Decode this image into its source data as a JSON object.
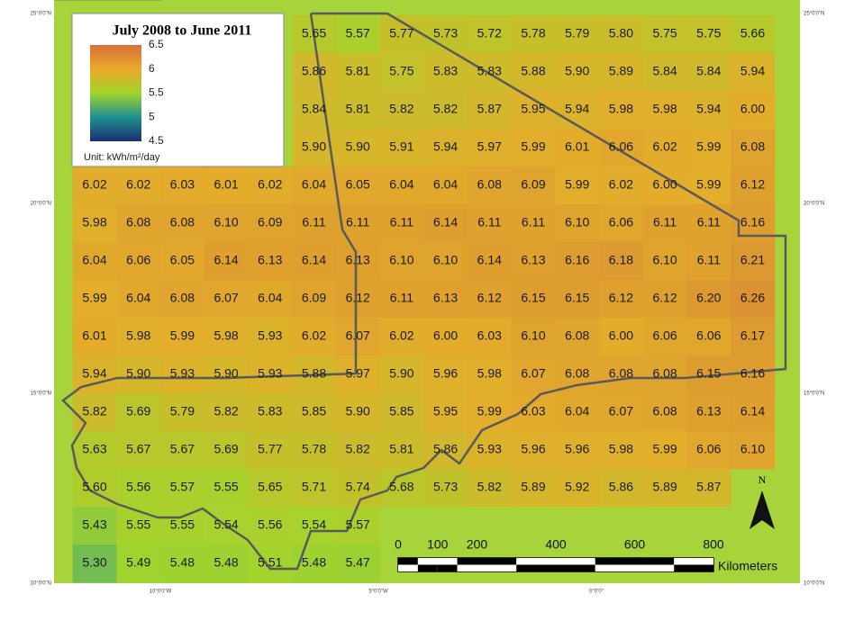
{
  "grid": {
    "rows": [
      [
        null,
        null,
        null,
        null,
        null,
        "5.65",
        "5.57",
        "5.77",
        "5.73",
        "5.72",
        "5.78",
        "5.79",
        "5.80",
        "5.75",
        "5.75",
        "5.66"
      ],
      [
        null,
        null,
        null,
        null,
        null,
        "5.86",
        "5.81",
        "5.75",
        "5.83",
        "5.83",
        "5.88",
        "5.90",
        "5.89",
        "5.84",
        "5.84",
        "5.94"
      ],
      [
        null,
        null,
        null,
        null,
        null,
        "5.84",
        "5.81",
        "5.82",
        "5.82",
        "5.87",
        "5.95",
        "5.94",
        "5.98",
        "5.98",
        "5.94",
        "6.00"
      ],
      [
        null,
        null,
        null,
        null,
        null,
        "5.90",
        "5.90",
        "5.91",
        "5.94",
        "5.97",
        "5.99",
        "6.01",
        "6.06",
        "6.02",
        "5.99",
        "6.08"
      ],
      [
        "6.02",
        "6.02",
        "6.03",
        "6.01",
        "6.02",
        "6.04",
        "6.05",
        "6.04",
        "6.04",
        "6.08",
        "6.09",
        "5.99",
        "6.02",
        "6.00",
        "5.99",
        "6.12"
      ],
      [
        "5.98",
        "6.08",
        "6.08",
        "6.10",
        "6.09",
        "6.11",
        "6.11",
        "6.11",
        "6.14",
        "6.11",
        "6.11",
        "6.10",
        "6.06",
        "6.11",
        "6.11",
        "6.16"
      ],
      [
        "6.04",
        "6.06",
        "6.05",
        "6.14",
        "6.13",
        "6.14",
        "6.13",
        "6.10",
        "6.10",
        "6.14",
        "6.13",
        "6.16",
        "6.18",
        "6.10",
        "6.11",
        "6.21"
      ],
      [
        "5.99",
        "6.04",
        "6.08",
        "6.07",
        "6.04",
        "6.09",
        "6.12",
        "6.11",
        "6.13",
        "6.12",
        "6.15",
        "6.15",
        "6.12",
        "6.12",
        "6.20",
        "6.26"
      ],
      [
        "6.01",
        "5.98",
        "5.99",
        "5.98",
        "5.93",
        "6.02",
        "6.07",
        "6.02",
        "6.00",
        "6.03",
        "6.10",
        "6.08",
        "6.00",
        "6.06",
        "6.06",
        "6.17"
      ],
      [
        "5.94",
        "5.90",
        "5.93",
        "5.90",
        "5.93",
        "5.88",
        "5.97",
        "5.90",
        "5.96",
        "5.98",
        "6.07",
        "6.08",
        "6.08",
        "6.08",
        "6.15",
        "6.16"
      ],
      [
        "5.82",
        "5.69",
        "5.79",
        "5.82",
        "5.83",
        "5.85",
        "5.90",
        "5.85",
        "5.95",
        "5.99",
        "6.03",
        "6.04",
        "6.07",
        "6.08",
        "6.13",
        "6.14"
      ],
      [
        "5.63",
        "5.67",
        "5.67",
        "5.69",
        "5.77",
        "5.78",
        "5.82",
        "5.81",
        "5.86",
        "5.93",
        "5.96",
        "5.96",
        "5.98",
        "5.99",
        "6.06",
        "6.10"
      ],
      [
        "5.60",
        "5.56",
        "5.57",
        "5.55",
        "5.65",
        "5.71",
        "5.74",
        "5.68",
        "5.73",
        "5.82",
        "5.89",
        "5.92",
        "5.86",
        "5.89",
        "5.87",
        null
      ],
      [
        "5.43",
        "5.55",
        "5.55",
        "5.54",
        "5.56",
        "5.54",
        "5.57",
        null,
        null,
        null,
        null,
        null,
        null,
        null,
        null,
        null
      ],
      [
        "5.30",
        "5.49",
        "5.48",
        "5.48",
        "5.51",
        "5.48",
        "5.47",
        null,
        null,
        null,
        null,
        null,
        null,
        null,
        null,
        null
      ]
    ]
  },
  "legend": {
    "title": "July 2008 to June 2011",
    "range": [
      4.5,
      6.5
    ],
    "ticks": [
      6.5,
      6,
      5.5,
      5,
      4.5
    ],
    "colors": [
      "#1b2f72",
      "#1f9090",
      "#a2d42c",
      "#eaa92a",
      "#d6703a"
    ],
    "unit": "Unit: kWh/m²/day"
  },
  "scale_bar": {
    "ticks": [
      0,
      100,
      200,
      400,
      600,
      800
    ],
    "unit": "Kilometers"
  },
  "north": "N",
  "latitudes": [
    "25°0'0\"N",
    "20°0'0\"N",
    "15°0'0\"N",
    "10°0'0\"N"
  ],
  "longitudes": [
    "10°0'0\"W",
    "5°0'0\"W",
    "0°0'0\""
  ]
}
